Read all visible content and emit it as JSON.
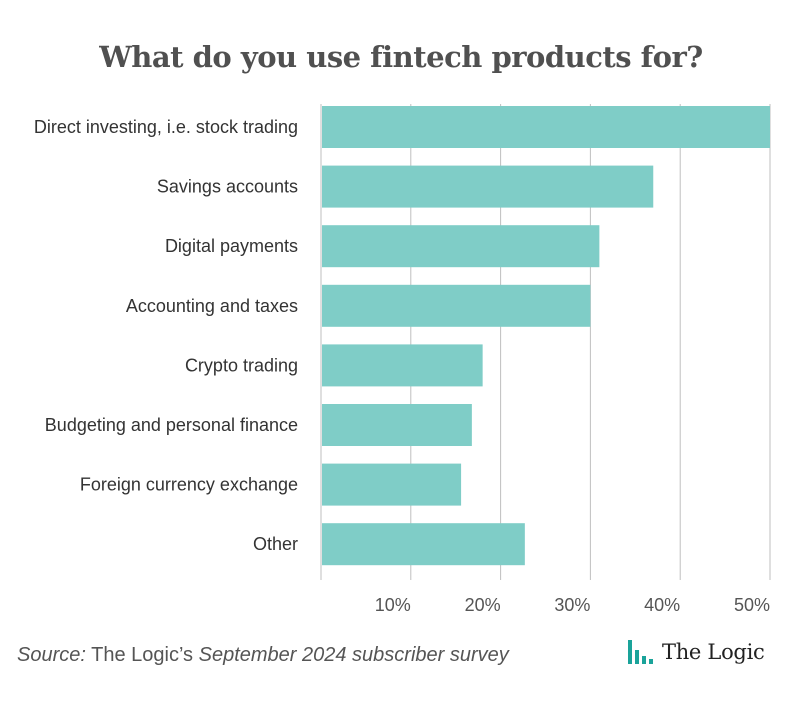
{
  "chart_data": {
    "type": "bar",
    "orientation": "horizontal",
    "title": "What do you use fintech products for?",
    "categories": [
      "Direct investing, i.e. stock trading",
      "Savings accounts",
      "Digital payments",
      "Accounting and taxes",
      "Crypto trading",
      "Budgeting and personal finance",
      "Foreign currency exchange",
      "Other"
    ],
    "values": [
      50,
      37,
      31,
      30,
      18,
      16.8,
      15.6,
      22.7
    ],
    "xlim": [
      0,
      50
    ],
    "xticks": [
      10,
      20,
      30,
      40,
      50
    ],
    "xtick_labels": [
      "10%",
      "20%",
      "30%",
      "40%",
      "50%"
    ],
    "xlabel": "",
    "ylabel": "",
    "grid": true,
    "legend": "none",
    "bar_color": "#7fcdc7",
    "grid_color": "#bfbfbf"
  },
  "footer": {
    "source_label": "Source:",
    "source_middle": " The Logic’s ",
    "source_rest": "September 2024 subscriber survey",
    "brand_name": "The Logic",
    "brand_icon": "the-logic-bars-icon",
    "brand_color": "#1aa39a"
  }
}
